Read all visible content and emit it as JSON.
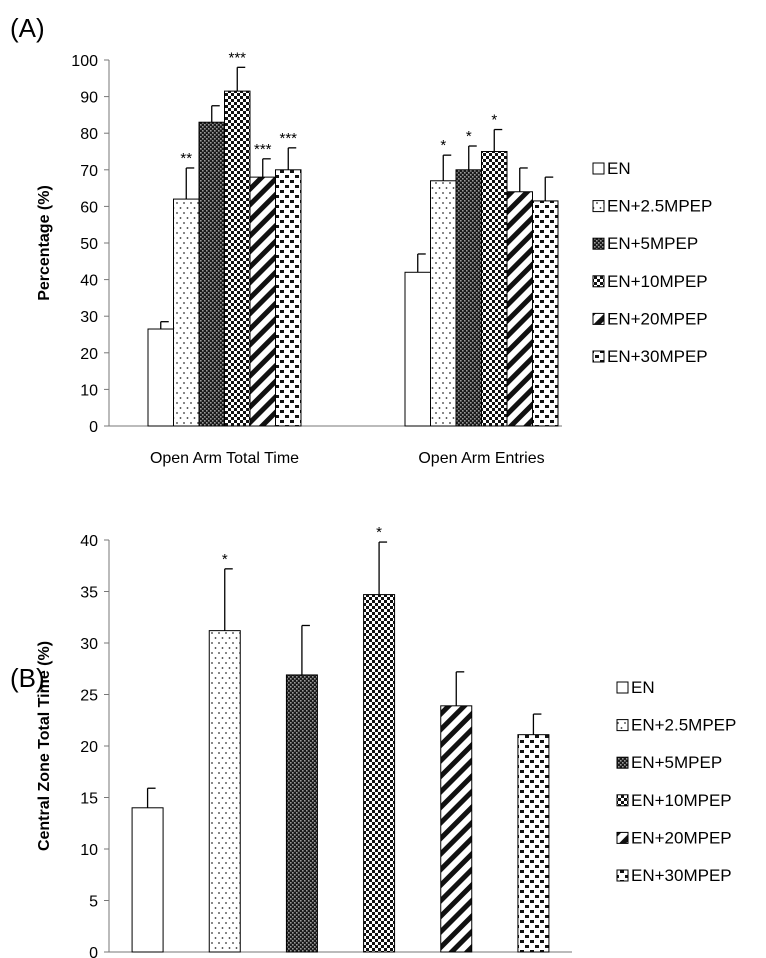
{
  "chart_data": [
    {
      "panel": "(A)",
      "type": "bar",
      "ylabel": "Percentage (%)",
      "ylim": [
        0,
        100
      ],
      "yticks": [
        0,
        10,
        20,
        30,
        40,
        50,
        60,
        70,
        80,
        90,
        100
      ],
      "categories": [
        "Open Arm Total Time",
        "Open Arm Entries"
      ],
      "series": [
        {
          "name": "EN",
          "pattern": "white",
          "values": [
            26.5,
            42
          ],
          "errors": [
            2,
            5
          ]
        },
        {
          "name": "EN+2.5MPEP",
          "pattern": "dots",
          "values": [
            62,
            67
          ],
          "errors": [
            8.5,
            7
          ]
        },
        {
          "name": "EN+5MPEP",
          "pattern": "dense",
          "values": [
            83,
            70
          ],
          "errors": [
            4.5,
            6.5
          ]
        },
        {
          "name": "EN+10MPEP",
          "pattern": "checker",
          "values": [
            91.5,
            75
          ],
          "errors": [
            6.5,
            6
          ]
        },
        {
          "name": "EN+20MPEP",
          "pattern": "diag",
          "values": [
            68,
            64
          ],
          "errors": [
            5,
            6.5
          ]
        },
        {
          "name": "EN+30MPEP",
          "pattern": "brick",
          "values": [
            70,
            61.5
          ],
          "errors": [
            6,
            6.5
          ]
        }
      ],
      "significance": [
        [
          "",
          ""
        ],
        [
          "**",
          "*"
        ],
        [
          "",
          "*"
        ],
        [
          "***",
          "*"
        ],
        [
          "***",
          ""
        ],
        [
          "***",
          ""
        ]
      ]
    },
    {
      "panel": "(B)",
      "type": "bar",
      "ylabel": "Central  Zone Total Time (%)",
      "ylim": [
        0,
        40
      ],
      "yticks": [
        0,
        5,
        10,
        15,
        20,
        25,
        30,
        35,
        40
      ],
      "categories": [
        "EN",
        "EN+2.5MPEP",
        "EN+5MPEP",
        "EN+10MPEP",
        "EN+20MPEP",
        "EN+30MPEP"
      ],
      "values": [
        14,
        31.2,
        26.9,
        34.7,
        23.9,
        21.1
      ],
      "errors": [
        1.9,
        6,
        4.8,
        5.1,
        3.3,
        2
      ],
      "patterns": [
        "white",
        "dots",
        "dense",
        "checker",
        "diag",
        "brick"
      ],
      "significance": [
        "",
        "*",
        "",
        "*",
        "",
        ""
      ],
      "legend": [
        "EN",
        "EN+2.5MPEP",
        "EN+5MPEP",
        "EN+10MPEP",
        "EN+20MPEP",
        "EN+30MPEP"
      ]
    }
  ]
}
